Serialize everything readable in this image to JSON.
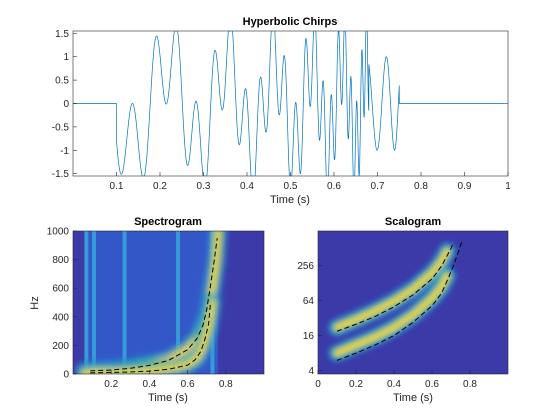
{
  "figure_title": "Hyperbolic Chirps",
  "chart_data": [
    {
      "type": "line",
      "title": "Hyperbolic Chirps",
      "xlabel": "Time (s)",
      "ylabel": "",
      "xlim": [
        0,
        1
      ],
      "ylim": [
        -1.55,
        1.55
      ],
      "xticks": [
        0.1,
        0.2,
        0.3,
        0.4,
        0.5,
        0.6,
        0.7,
        0.8,
        0.9,
        1
      ],
      "xtick_labels": [
        "0.1",
        "0.2",
        "0.3",
        "0.4",
        "0.5",
        "0.6",
        "0.7",
        "0.8",
        "0.9",
        "1"
      ],
      "yticks": [
        -1.5,
        -1,
        -0.5,
        0,
        0.5,
        1,
        1.5
      ],
      "ytick_labels": [
        "-1.5",
        "-1",
        "-0.5",
        "0",
        "0.5",
        "1",
        "1.5"
      ],
      "series_color": "#0072bd",
      "series": [
        {
          "kind": "hyperbolic-chirp",
          "amplitude": 1,
          "active_interval": [
            0.1,
            0.68
          ],
          "chirp_time": 0.8,
          "f0_hz": 15
        },
        {
          "kind": "hyperbolic-chirp",
          "amplitude": 1,
          "active_interval": [
            0.1,
            0.75
          ],
          "chirp_time": 0.9,
          "f0_hz": 5
        }
      ]
    },
    {
      "type": "heatmap",
      "title": "Spectrogram",
      "xlabel": "Time (s)",
      "ylabel": "Hz",
      "xlim": [
        0,
        1
      ],
      "ylim": [
        0,
        1000
      ],
      "xticks": [
        0.2,
        0.4,
        0.6,
        0.8
      ],
      "xtick_labels": [
        "0.2",
        "0.4",
        "0.6",
        "0.8"
      ],
      "yticks": [
        0,
        200,
        400,
        600,
        800,
        1000
      ],
      "ytick_labels": [
        "0",
        "200",
        "400",
        "600",
        "800",
        "1000"
      ],
      "background_color": "#3b3aa8",
      "ridges": [
        {
          "points": [
            [
              0.06,
              20
            ],
            [
              0.1,
              25
            ],
            [
              0.2,
              30
            ],
            [
              0.3,
              45
            ],
            [
              0.4,
              65
            ],
            [
              0.5,
              100
            ],
            [
              0.6,
              175
            ],
            [
              0.66,
              260
            ],
            [
              0.7,
              400
            ],
            [
              0.73,
              600
            ],
            [
              0.75,
              800
            ],
            [
              0.76,
              1000
            ]
          ]
        },
        {
          "points": [
            [
              0.06,
              5
            ],
            [
              0.1,
              10
            ],
            [
              0.2,
              12
            ],
            [
              0.3,
              15
            ],
            [
              0.4,
              22
            ],
            [
              0.5,
              35
            ],
            [
              0.6,
              65
            ],
            [
              0.65,
              110
            ],
            [
              0.68,
              190
            ],
            [
              0.71,
              330
            ],
            [
              0.73,
              500
            ]
          ]
        }
      ],
      "vertical_bands": [
        0.07,
        0.11,
        0.27,
        0.55,
        0.73
      ],
      "overlay_curves": [
        {
          "style": "dashed",
          "color": "#000000",
          "points": [
            [
              0.09,
              22
            ],
            [
              0.2,
              28
            ],
            [
              0.3,
              40
            ],
            [
              0.4,
              60
            ],
            [
              0.5,
              95
            ],
            [
              0.6,
              170
            ],
            [
              0.65,
              250
            ],
            [
              0.68,
              340
            ],
            [
              0.7,
              450
            ],
            [
              0.72,
              620
            ],
            [
              0.74,
              800
            ],
            [
              0.755,
              950
            ]
          ]
        },
        {
          "style": "dashed",
          "color": "#000000",
          "points": [
            [
              0.09,
              8
            ],
            [
              0.2,
              11
            ],
            [
              0.3,
              14
            ],
            [
              0.4,
              20
            ],
            [
              0.5,
              33
            ],
            [
              0.6,
              62
            ],
            [
              0.64,
              100
            ],
            [
              0.67,
              160
            ],
            [
              0.69,
              240
            ],
            [
              0.71,
              350
            ],
            [
              0.72,
              500
            ]
          ]
        }
      ]
    },
    {
      "type": "heatmap",
      "title": "Scalogram",
      "xlabel": "Time (s)",
      "ylabel": "",
      "xlim": [
        0,
        1
      ],
      "ylim": [
        3.5,
        1000
      ],
      "yscale": "log",
      "xticks": [
        0,
        0.2,
        0.4,
        0.6,
        0.8
      ],
      "xtick_labels": [
        "0",
        "0.2",
        "0.4",
        "0.6",
        "0.8"
      ],
      "yticks": [
        4,
        16,
        64,
        256
      ],
      "ytick_labels": [
        "4",
        "16",
        "64",
        "256"
      ],
      "background_color": "#3b3aa8",
      "ridges": [
        {
          "points": [
            [
              0.1,
              22
            ],
            [
              0.2,
              30
            ],
            [
              0.3,
              42
            ],
            [
              0.4,
              62
            ],
            [
              0.5,
              100
            ],
            [
              0.6,
              190
            ],
            [
              0.65,
              300
            ],
            [
              0.68,
              450
            ]
          ]
        },
        {
          "points": [
            [
              0.1,
              8
            ],
            [
              0.2,
              11
            ],
            [
              0.3,
              15
            ],
            [
              0.4,
              22
            ],
            [
              0.5,
              36
            ],
            [
              0.6,
              70
            ],
            [
              0.65,
              110
            ],
            [
              0.68,
              170
            ]
          ]
        }
      ],
      "overlay_curves": [
        {
          "style": "dashed",
          "color": "#000000",
          "points": [
            [
              0.1,
              19
            ],
            [
              0.2,
              25
            ],
            [
              0.3,
              34
            ],
            [
              0.4,
              50
            ],
            [
              0.5,
              80
            ],
            [
              0.6,
              150
            ],
            [
              0.65,
              250
            ],
            [
              0.68,
              380
            ],
            [
              0.7,
              500
            ],
            [
              0.71,
              600
            ]
          ]
        },
        {
          "style": "dashed",
          "color": "#000000",
          "points": [
            [
              0.1,
              6
            ],
            [
              0.2,
              8
            ],
            [
              0.3,
              11
            ],
            [
              0.4,
              16
            ],
            [
              0.5,
              27
            ],
            [
              0.6,
              52
            ],
            [
              0.65,
              85
            ],
            [
              0.68,
              140
            ],
            [
              0.71,
              240
            ],
            [
              0.74,
              450
            ],
            [
              0.76,
              700
            ]
          ]
        }
      ]
    }
  ]
}
